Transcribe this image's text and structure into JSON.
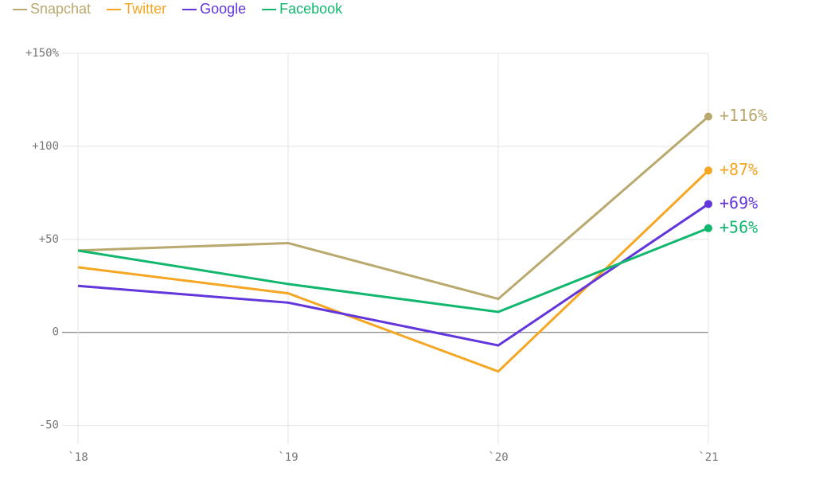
{
  "chart_data": {
    "type": "line",
    "categories": [
      "`18",
      "`19",
      "`20",
      "`21"
    ],
    "series": [
      {
        "name": "Snapchat",
        "color": "#b9a96e",
        "values": [
          44,
          48,
          18,
          116
        ],
        "value_labels": [
          null,
          null,
          null,
          "+116%"
        ]
      },
      {
        "name": "Twitter",
        "color": "#f5a623",
        "values": [
          35,
          21,
          -21,
          87
        ],
        "value_labels": [
          null,
          null,
          null,
          "+87%"
        ]
      },
      {
        "name": "Google",
        "color": "#6236db",
        "values": [
          25,
          16,
          -7,
          69
        ],
        "value_labels": [
          null,
          null,
          null,
          "+69%"
        ]
      },
      {
        "name": "Facebook",
        "color": "#12b76e",
        "values": [
          44,
          26,
          11,
          56
        ],
        "value_labels": [
          null,
          null,
          null,
          "+56%"
        ]
      }
    ],
    "ylim": [
      -60,
      150
    ],
    "yticks": [
      {
        "value": 150,
        "label": "+150%"
      },
      {
        "value": 100,
        "label": "+100"
      },
      {
        "value": 50,
        "label": "+50"
      },
      0,
      -50
    ],
    "grid": true,
    "legend": "top-left"
  }
}
